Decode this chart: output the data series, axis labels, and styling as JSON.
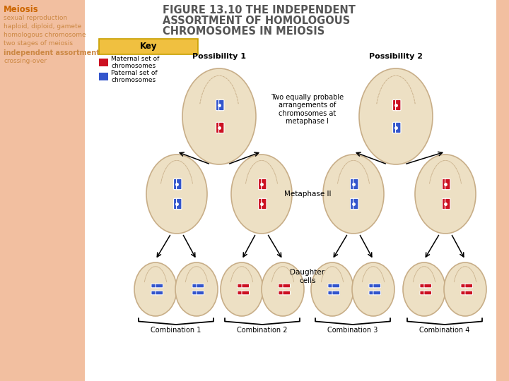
{
  "title_line1": "FIGURE 13.10 THE INDEPENDENT",
  "title_line2": "ASSORTMENT OF HOMOLOGOUS",
  "title_line3": "CHROMOSOMES IN MEIOSIS",
  "sidebar_title": "Meiosis",
  "sidebar_terms": [
    "sexual reproduction",
    "haploid, diploid, gamete",
    "homologous chromosome",
    "two stages of meiosis",
    "independent assortment",
    "crossing-over"
  ],
  "key_label": "Key",
  "maternal_label": "Maternal set of\nchromosomes",
  "paternal_label": "Paternal set of\nchromosomes",
  "possibility1_label": "Possibility 1",
  "possibility2_label": "Possibility 2",
  "metaphase1_label": "Two equally probable\narrangements of\nchromosomes at\nmetaphase I",
  "metaphase2_label": "Metaphase II",
  "daughter_label": "Daughter\ncells",
  "combination_labels": [
    "Combination 1",
    "Combination 2",
    "Combination 3",
    "Combination 4"
  ],
  "bg_color": "#ffffff",
  "sidebar_bg": "#f2bfa0",
  "cell_fill": "#ede0c4",
  "cell_edge": "#c8ae88",
  "maternal_color": "#cc1122",
  "paternal_color": "#3355cc",
  "key_bg": "#f0c040",
  "title_color": "#555555",
  "sidebar_title_color": "#cc6600",
  "sidebar_term_color": "#cc8844",
  "right_bar_color": "#f2bfa0",
  "sidebar_bold_term": "independent assortment"
}
